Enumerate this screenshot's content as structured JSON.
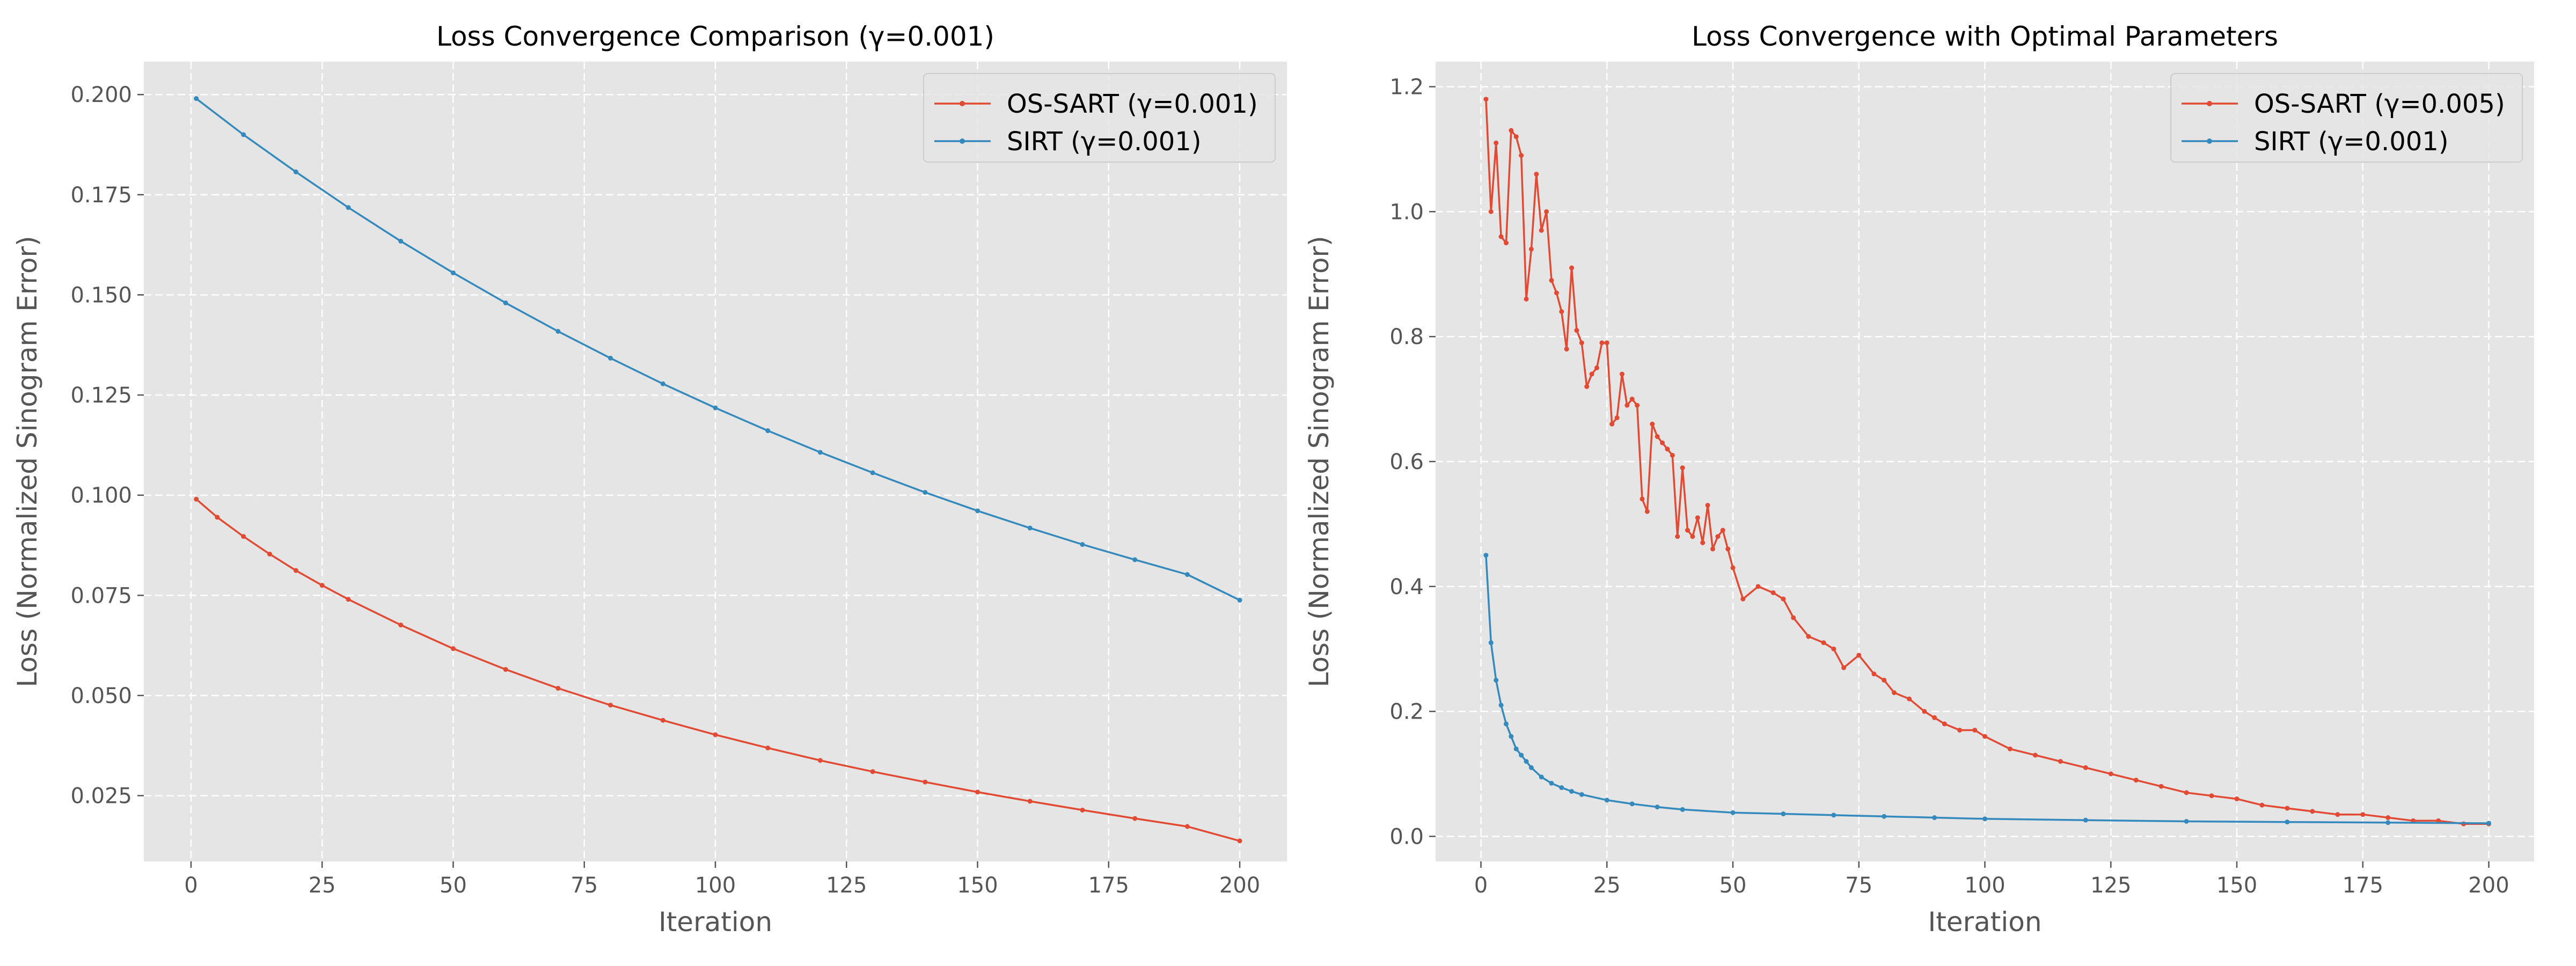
{
  "chart_data": [
    {
      "type": "line",
      "title": "Loss Convergence Comparison (γ=0.001)",
      "xlabel": "Iteration",
      "ylabel": "Loss (Normalized Sinogram Error)",
      "xlim": [
        -9,
        209
      ],
      "ylim": [
        0.0086,
        0.2082
      ],
      "xticks": [
        0,
        25,
        50,
        75,
        100,
        125,
        150,
        175,
        200
      ],
      "yticks": [
        0.025,
        0.05,
        0.075,
        0.1,
        0.125,
        0.15,
        0.175,
        0.2
      ],
      "ytick_labels": [
        "0.025",
        "0.050",
        "0.075",
        "0.100",
        "0.125",
        "0.150",
        "0.175",
        "0.200"
      ],
      "grid": true,
      "legend_position": "top-right",
      "series": [
        {
          "name": "OS-SART (γ=0.001)",
          "color": "#E24A33",
          "x": [
            1,
            5,
            10,
            15,
            20,
            25,
            30,
            40,
            50,
            60,
            70,
            80,
            90,
            100,
            110,
            120,
            130,
            140,
            150,
            160,
            170,
            180,
            190,
            200
          ],
          "y": [
            0.099,
            0.0945,
            0.0897,
            0.0853,
            0.0812,
            0.0775,
            0.074,
            0.0676,
            0.0617,
            0.0565,
            0.0518,
            0.0476,
            0.0438,
            0.0402,
            0.0369,
            0.0338,
            0.031,
            0.0284,
            0.0259,
            0.0236,
            0.0214,
            0.0193,
            0.0173,
            0.0137
          ]
        },
        {
          "name": "SIRT (γ=0.001)",
          "color": "#348ABD",
          "x": [
            1,
            10,
            20,
            30,
            40,
            50,
            60,
            70,
            80,
            90,
            100,
            110,
            120,
            130,
            140,
            150,
            160,
            170,
            180,
            190,
            200
          ],
          "y": [
            0.199,
            0.19,
            0.1807,
            0.1718,
            0.1634,
            0.1555,
            0.148,
            0.1409,
            0.1342,
            0.1278,
            0.1218,
            0.1161,
            0.1107,
            0.1056,
            0.1007,
            0.0961,
            0.0918,
            0.0877,
            0.0839,
            0.0802,
            0.0738
          ]
        }
      ]
    },
    {
      "type": "line",
      "title": "Loss Convergence with Optimal Parameters",
      "xlabel": "Iteration",
      "ylabel": "Loss (Normalized Sinogram Error)",
      "xlim": [
        -9,
        209
      ],
      "ylim": [
        -0.04,
        1.24
      ],
      "xticks": [
        0,
        25,
        50,
        75,
        100,
        125,
        150,
        175,
        200
      ],
      "yticks": [
        0,
        0.2,
        0.4,
        0.6,
        0.8,
        1.0,
        1.2
      ],
      "ytick_labels": [
        "0.0",
        "0.2",
        "0.4",
        "0.6",
        "0.8",
        "1.0",
        "1.2"
      ],
      "grid": true,
      "legend_position": "top-right",
      "series": [
        {
          "name": "OS-SART (γ=0.005)",
          "color": "#E24A33",
          "x": [
            1,
            2,
            3,
            4,
            5,
            6,
            7,
            8,
            9,
            10,
            11,
            12,
            13,
            14,
            15,
            16,
            17,
            18,
            19,
            20,
            21,
            22,
            23,
            24,
            25,
            26,
            27,
            28,
            29,
            30,
            31,
            32,
            33,
            34,
            35,
            36,
            37,
            38,
            39,
            40,
            41,
            42,
            43,
            44,
            45,
            46,
            47,
            48,
            49,
            50,
            52,
            55,
            58,
            60,
            62,
            65,
            68,
            70,
            72,
            75,
            78,
            80,
            82,
            85,
            88,
            90,
            92,
            95,
            98,
            100,
            105,
            110,
            115,
            120,
            125,
            130,
            135,
            140,
            145,
            150,
            155,
            160,
            165,
            170,
            175,
            180,
            185,
            190,
            195,
            200
          ],
          "y": [
            1.18,
            1.0,
            1.11,
            0.96,
            0.95,
            1.13,
            1.12,
            1.09,
            0.86,
            0.94,
            1.06,
            0.97,
            1.0,
            0.89,
            0.87,
            0.84,
            0.78,
            0.91,
            0.81,
            0.79,
            0.72,
            0.74,
            0.75,
            0.79,
            0.79,
            0.66,
            0.67,
            0.74,
            0.69,
            0.7,
            0.69,
            0.54,
            0.52,
            0.66,
            0.64,
            0.63,
            0.62,
            0.61,
            0.48,
            0.59,
            0.49,
            0.48,
            0.51,
            0.47,
            0.53,
            0.46,
            0.48,
            0.49,
            0.46,
            0.43,
            0.38,
            0.4,
            0.39,
            0.38,
            0.35,
            0.32,
            0.31,
            0.3,
            0.27,
            0.29,
            0.26,
            0.25,
            0.23,
            0.22,
            0.2,
            0.19,
            0.18,
            0.17,
            0.17,
            0.16,
            0.14,
            0.13,
            0.12,
            0.11,
            0.1,
            0.09,
            0.08,
            0.07,
            0.065,
            0.06,
            0.05,
            0.045,
            0.04,
            0.035,
            0.035,
            0.03,
            0.025,
            0.025,
            0.02,
            0.02
          ]
        },
        {
          "name": "SIRT (γ=0.001)",
          "color": "#348ABD",
          "x": [
            1,
            2,
            3,
            4,
            5,
            6,
            7,
            8,
            9,
            10,
            12,
            14,
            16,
            18,
            20,
            25,
            30,
            35,
            40,
            50,
            60,
            70,
            80,
            90,
            100,
            120,
            140,
            160,
            180,
            200
          ],
          "y": [
            0.45,
            0.31,
            0.25,
            0.21,
            0.18,
            0.16,
            0.14,
            0.13,
            0.12,
            0.11,
            0.095,
            0.085,
            0.078,
            0.072,
            0.067,
            0.058,
            0.052,
            0.047,
            0.043,
            0.038,
            0.036,
            0.034,
            0.032,
            0.03,
            0.028,
            0.026,
            0.024,
            0.023,
            0.022,
            0.021
          ]
        }
      ]
    }
  ]
}
